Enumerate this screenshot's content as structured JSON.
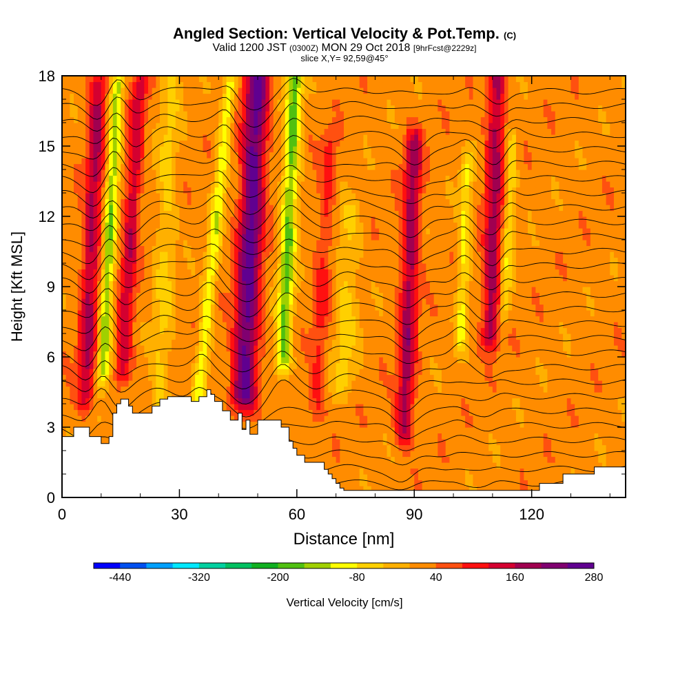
{
  "title": {
    "main": "Angled Section: Vertical Velocity & Pot.Temp.",
    "copyright": "(C)",
    "valid_prefix": "Valid 1200 JST",
    "valid_utc": "(0300Z)",
    "valid_date": "MON 29 Oct 2018",
    "forecast": "[9hrFcst@2229z]",
    "slice": "slice X,Y= 92,59@45°"
  },
  "chart_data": {
    "type": "heatmap",
    "xlabel": "Distance [nm]",
    "ylabel": "Height [Kft MSL]",
    "xlim": [
      0,
      144
    ],
    "ylim": [
      0,
      18
    ],
    "xticks": [
      0,
      30,
      60,
      90,
      120
    ],
    "yticks": [
      0,
      3,
      6,
      9,
      12,
      15,
      18
    ],
    "colorbar": {
      "label": "Vertical Velocity [cm/s]",
      "ticks": [
        -440,
        -320,
        -200,
        -80,
        40,
        160,
        280
      ],
      "range": [
        -480,
        280
      ],
      "step": 40,
      "colors": [
        "#0000ff",
        "#0050f0",
        "#00a0ff",
        "#00e8ff",
        "#00d0a0",
        "#00c060",
        "#10b020",
        "#50c010",
        "#a0d000",
        "#ffff00",
        "#ffd000",
        "#ffb000",
        "#ff8c00",
        "#ff5010",
        "#ff1010",
        "#d40030",
        "#a00050",
        "#800070",
        "#600090"
      ]
    },
    "background_value": 20,
    "features": [
      {
        "x": 6,
        "z0": 17.5,
        "z1": 4.5,
        "slant": 0.25,
        "width": 2.2,
        "value": 150
      },
      {
        "x": 10.5,
        "z0": 17.5,
        "z1": 5.5,
        "slant": 0.3,
        "width": 1.6,
        "value": -170
      },
      {
        "x": 15.5,
        "z0": 17.5,
        "z1": 5.5,
        "slant": 0.35,
        "width": 2.0,
        "value": 130
      },
      {
        "x": 35,
        "z0": 17.5,
        "z1": 4.5,
        "slant": 0.6,
        "width": 1.6,
        "value": -130
      },
      {
        "x": 46.5,
        "z0": 18,
        "z1": 4.5,
        "slant": 0.25,
        "width": 3.0,
        "value": 240
      },
      {
        "x": 56.5,
        "z0": 18,
        "z1": 6,
        "slant": 0.25,
        "width": 2.0,
        "value": -190
      },
      {
        "x": 87.5,
        "z0": 15,
        "z1": 3,
        "slant": 0.2,
        "width": 2.2,
        "value": 160
      },
      {
        "x": 102,
        "z0": 14,
        "z1": 7,
        "slant": 0.2,
        "width": 1.5,
        "value": -110
      },
      {
        "x": 109.5,
        "z0": 18,
        "z1": 7,
        "slant": 0.15,
        "width": 2.2,
        "value": 160
      },
      {
        "x": 113,
        "z0": 15,
        "z1": 8,
        "slant": 0.3,
        "width": 1.4,
        "value": -90
      },
      {
        "x": 25,
        "z0": 18,
        "z1": 4,
        "slant": 0.2,
        "width": 2.5,
        "value": -70
      },
      {
        "x": 72,
        "z0": 12,
        "z1": 5,
        "slant": 0.2,
        "width": 3.0,
        "value": -70
      },
      {
        "x": 65,
        "z0": 15,
        "z1": 4,
        "slant": 0.3,
        "width": 2.0,
        "value": 70
      }
    ],
    "terrain": {
      "x": [
        0,
        3,
        6,
        7,
        9,
        10,
        12,
        13,
        14,
        15,
        17,
        18,
        20,
        21,
        23,
        25,
        27,
        29,
        31,
        33,
        35,
        37,
        38,
        39,
        41,
        43,
        45,
        46,
        47,
        48,
        50,
        52,
        54,
        56,
        58,
        59,
        60,
        61,
        62,
        66,
        67,
        68,
        69,
        70,
        71,
        72,
        76,
        78,
        79,
        80,
        82,
        84,
        86,
        88,
        90,
        92,
        94,
        96,
        98,
        100,
        102,
        104,
        106,
        108,
        110,
        112,
        114,
        116,
        118,
        120,
        122,
        124,
        126,
        128,
        132,
        136,
        138,
        140,
        144
      ],
      "y": [
        2.6,
        3.0,
        3.0,
        2.6,
        2.6,
        2.3,
        2.6,
        3.6,
        4.0,
        4.2,
        3.9,
        3.6,
        3.6,
        3.6,
        3.9,
        4.2,
        4.3,
        4.3,
        4.3,
        4.1,
        4.3,
        4.6,
        4.4,
        4.1,
        3.7,
        3.3,
        3.6,
        2.9,
        3.3,
        2.7,
        3.3,
        3.3,
        3.3,
        3.0,
        2.4,
        2.1,
        1.8,
        1.8,
        1.5,
        1.5,
        1.2,
        1.0,
        0.8,
        0.6,
        0.4,
        0.3,
        0.3,
        0.3,
        0.3,
        0.3,
        0.3,
        0.3,
        0.3,
        0.3,
        0.3,
        0.3,
        0.3,
        0.3,
        0.3,
        0.3,
        0.3,
        0.3,
        0.3,
        0.3,
        0.3,
        0.3,
        0.3,
        0.3,
        0.3,
        0.3,
        0.6,
        0.6,
        0.6,
        1.0,
        1.0,
        1.3,
        1.3,
        1.3,
        1.3
      ]
    },
    "isentropes": {
      "base": 0.6,
      "spacing": 0.62,
      "count": 28
    }
  }
}
